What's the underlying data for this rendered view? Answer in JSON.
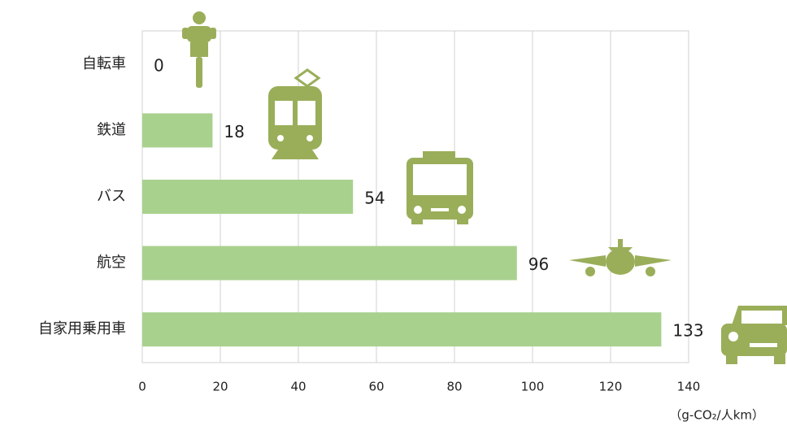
{
  "chart_data": {
    "type": "bar",
    "orientation": "horizontal",
    "categories": [
      "自転車",
      "鉄道",
      "バス",
      "航空",
      "自家用乗用車"
    ],
    "values": [
      0,
      18,
      54,
      96,
      133
    ],
    "color": "#a9d18e",
    "xlim": [
      0,
      140
    ],
    "xticks": [
      0,
      20,
      40,
      60,
      80,
      100,
      120,
      140
    ],
    "grid": true,
    "x_label": "（g-CO₂/人km）"
  }
}
